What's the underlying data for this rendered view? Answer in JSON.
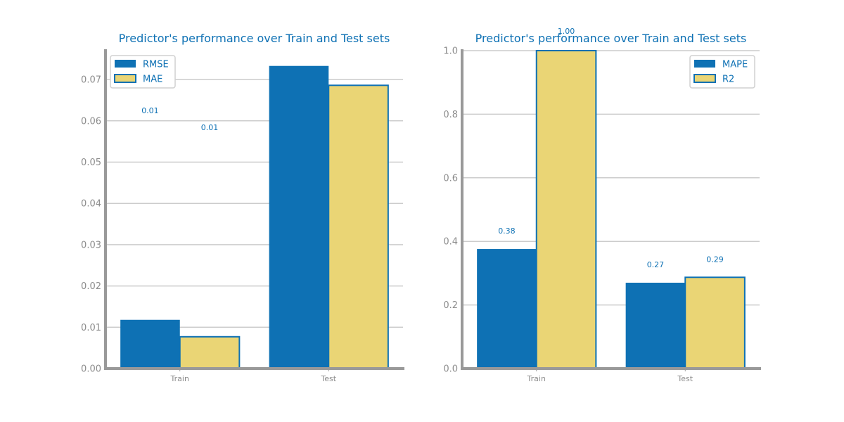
{
  "colors": {
    "accent": "#0e71b4",
    "bar_primary": "#0e71b4",
    "bar_secondary": "#ead575",
    "bar_secondary_edge": "#0e71b4",
    "grid": "#cccccc",
    "axis": "#999999",
    "tick_text": "#8c8c8c"
  },
  "chart_data": [
    {
      "type": "bar",
      "title": "Predictor's performance over Train and Test sets",
      "xlabel": "",
      "ylabel": "",
      "categories": [
        "Train",
        "Test"
      ],
      "ylim": [
        0,
        0.077
      ],
      "yticks": [
        0.0,
        0.01,
        0.02,
        0.03,
        0.04,
        0.05,
        0.06,
        0.07
      ],
      "ytick_labels": [
        "0.00",
        "0.01",
        "0.02",
        "0.03",
        "0.04",
        "0.05",
        "0.06",
        "0.07"
      ],
      "grid": true,
      "legend": "top-left",
      "series": [
        {
          "name": "RMSE",
          "values": [
            0.0118,
            0.0733
          ],
          "data_labels": [
            "0.01",
            ""
          ]
        },
        {
          "name": "MAE",
          "values": [
            0.0077,
            0.0686
          ],
          "data_labels": [
            "0.01",
            ""
          ]
        }
      ]
    },
    {
      "type": "bar",
      "title": "Predictor's performance over Train and Test sets",
      "xlabel": "",
      "ylabel": "",
      "categories": [
        "Train",
        "Test"
      ],
      "ylim": [
        0,
        1.0
      ],
      "yticks": [
        0.0,
        0.2,
        0.4,
        0.6,
        0.8,
        1.0
      ],
      "ytick_labels": [
        "0.0",
        "0.2",
        "0.4",
        "0.6",
        "0.8",
        "1.0"
      ],
      "grid": true,
      "legend": "top-right",
      "series": [
        {
          "name": "MAPE",
          "values": [
            0.376,
            0.27
          ],
          "data_labels": [
            "0.38",
            "0.27"
          ]
        },
        {
          "name": "R2",
          "values": [
            1.0,
            0.287
          ],
          "data_labels": [
            "1.00",
            "0.29"
          ]
        }
      ]
    }
  ]
}
